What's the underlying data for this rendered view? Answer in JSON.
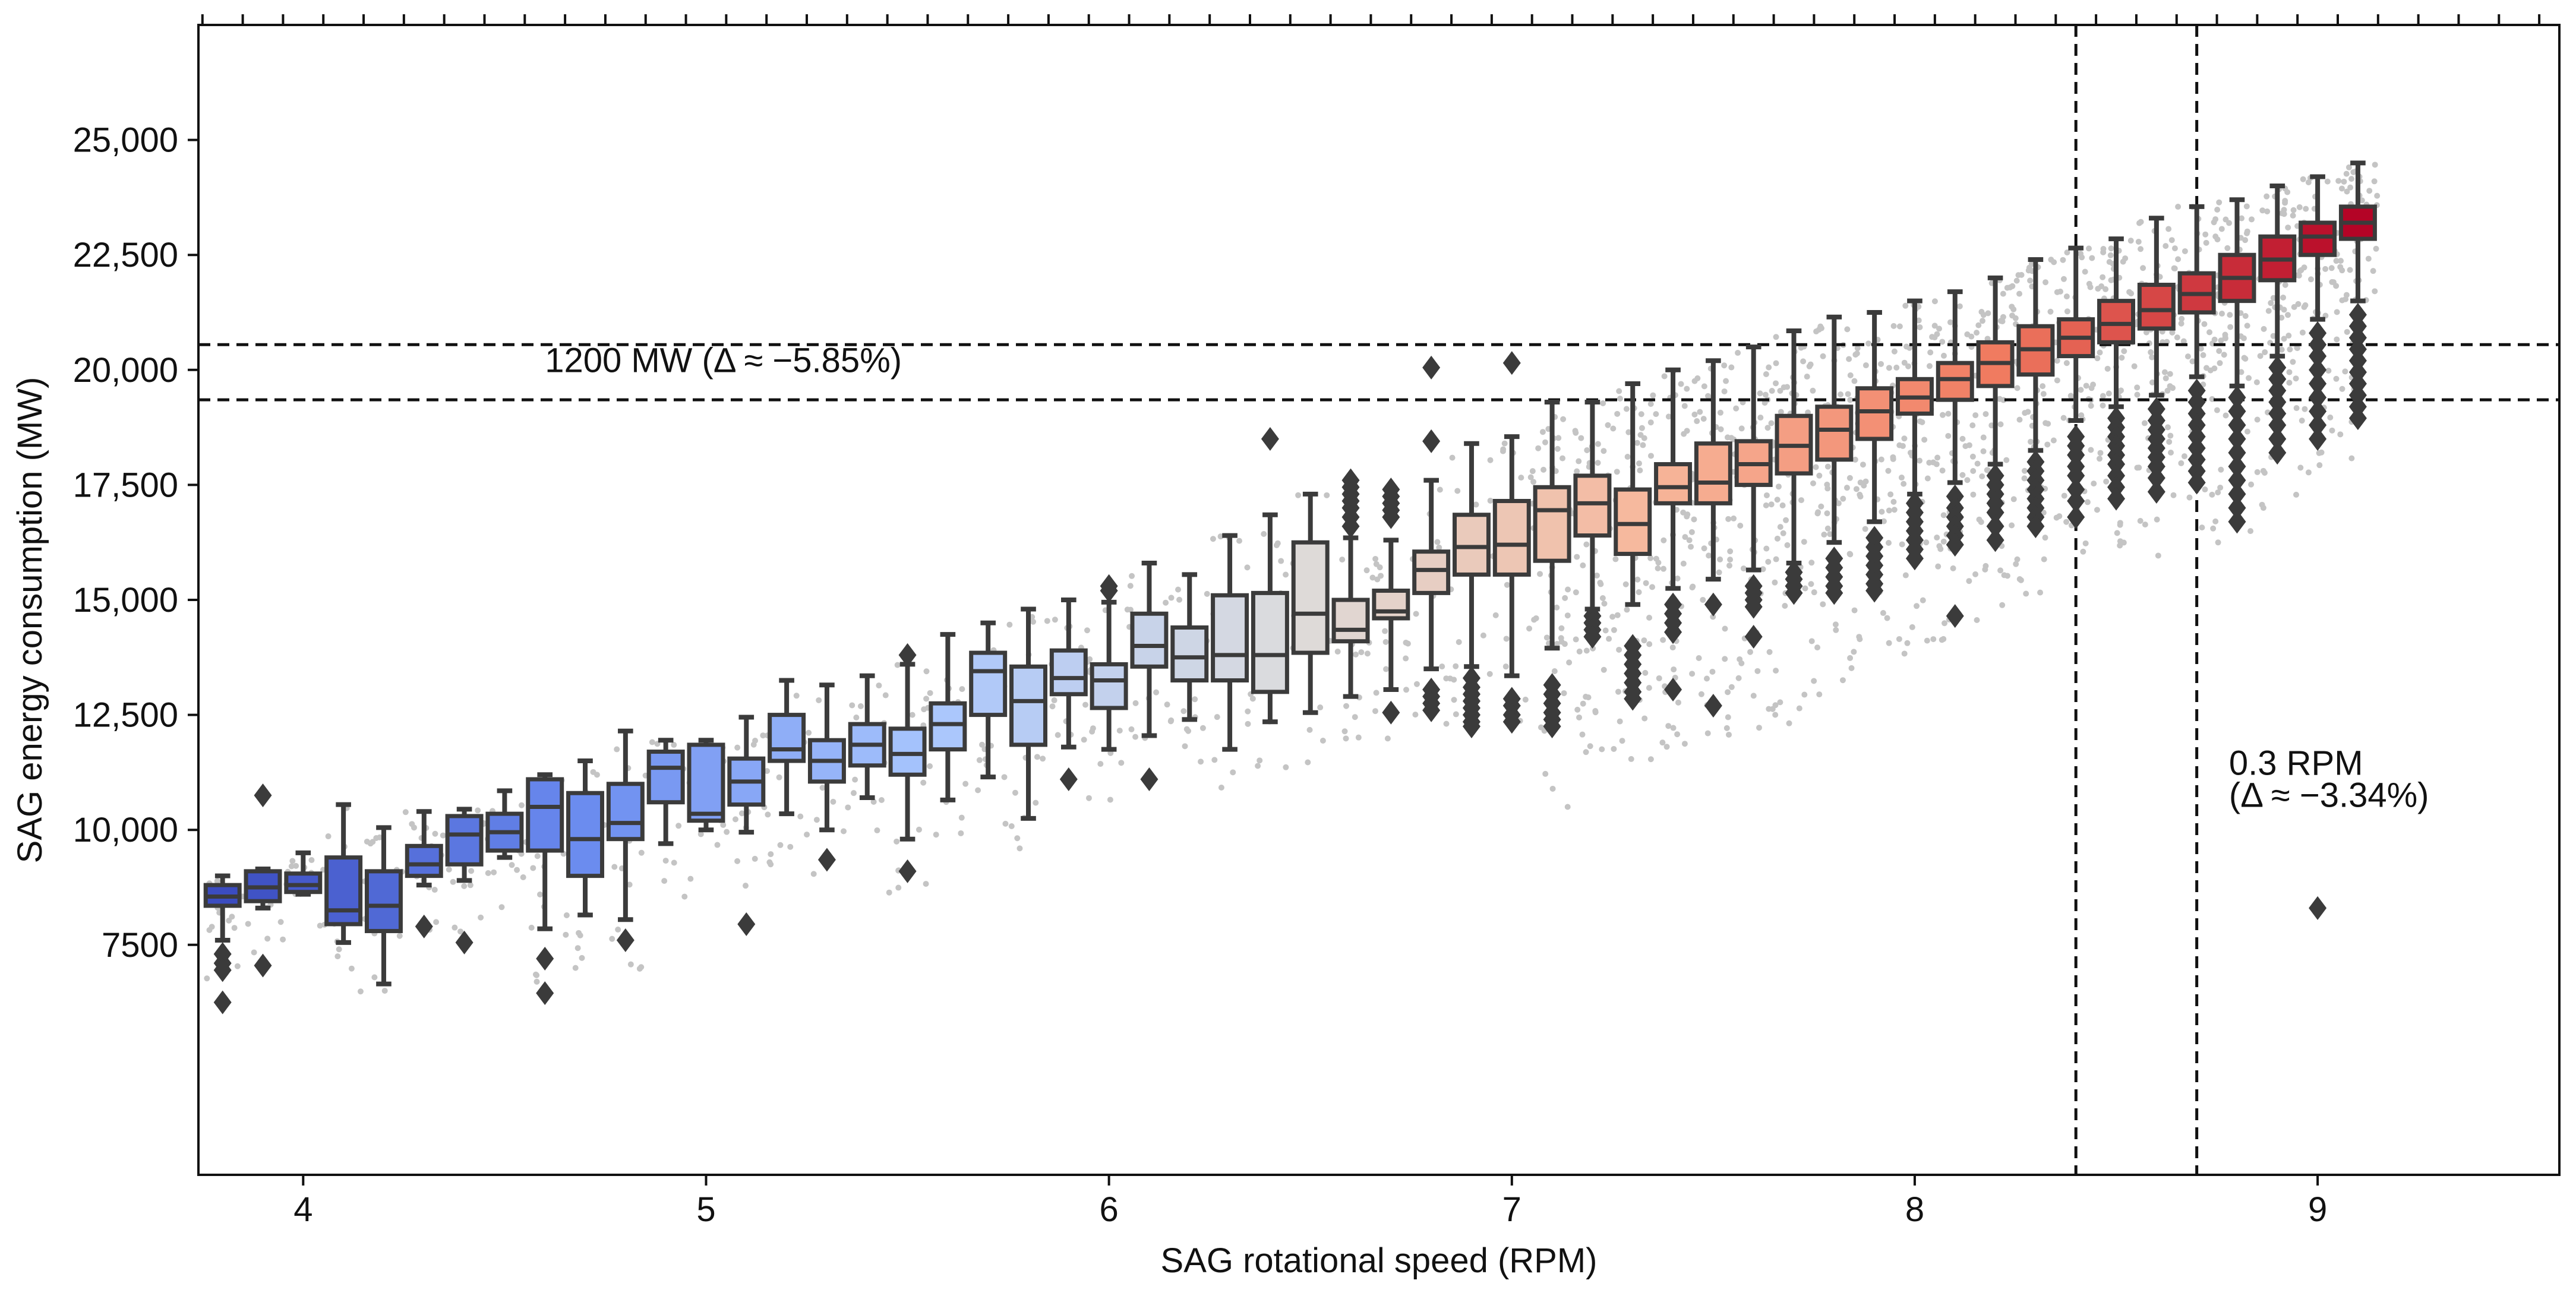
{
  "chart_data": {
    "type": "box",
    "xlabel": "SAG rotational speed (RPM)",
    "ylabel": "SAG energy consumption (MW)",
    "xlim": [
      3.74,
      9.6
    ],
    "ylim": [
      2500,
      27500
    ],
    "x_ticks": [
      {
        "value": 4,
        "label": "4"
      },
      {
        "value": 5,
        "label": "5"
      },
      {
        "value": 6,
        "label": "6"
      },
      {
        "value": 7,
        "label": "7"
      },
      {
        "value": 8,
        "label": "8"
      },
      {
        "value": 9,
        "label": "9"
      }
    ],
    "y_ticks": [
      {
        "value": 7500,
        "label": "7500"
      },
      {
        "value": 10000,
        "label": "10,000"
      },
      {
        "value": 12500,
        "label": "12,500"
      },
      {
        "value": 15000,
        "label": "15,000"
      },
      {
        "value": 17500,
        "label": "17,500"
      },
      {
        "value": 20000,
        "label": "20,000"
      },
      {
        "value": 22500,
        "label": "22,500"
      },
      {
        "value": 25000,
        "label": "25,000"
      }
    ],
    "bin_width_rpm": 0.1,
    "boxes": [
      {
        "x": 3.8,
        "q1": 8350,
        "median": 8550,
        "q3": 8800,
        "wlo": 7600,
        "whi": 9000,
        "fliers": [
          7300,
          7100,
          6950,
          6250
        ]
      },
      {
        "x": 3.9,
        "q1": 8450,
        "median": 8750,
        "q3": 9100,
        "wlo": 8300,
        "whi": 9150,
        "fliers": [
          10750,
          7050
        ]
      },
      {
        "x": 4.0,
        "q1": 8650,
        "median": 8800,
        "q3": 9050,
        "wlo": 8600,
        "whi": 9500,
        "fliers": []
      },
      {
        "x": 4.1,
        "q1": 7950,
        "median": 8250,
        "q3": 9400,
        "wlo": 7550,
        "whi": 10550,
        "fliers": []
      },
      {
        "x": 4.2,
        "q1": 7800,
        "median": 8350,
        "q3": 9100,
        "wlo": 6650,
        "whi": 10050,
        "fliers": []
      },
      {
        "x": 4.3,
        "q1": 9000,
        "median": 9250,
        "q3": 9650,
        "wlo": 8800,
        "whi": 10400,
        "fliers": [
          7900
        ]
      },
      {
        "x": 4.4,
        "q1": 9250,
        "median": 9900,
        "q3": 10300,
        "wlo": 8900,
        "whi": 10450,
        "fliers": [
          7550
        ]
      },
      {
        "x": 4.5,
        "q1": 9550,
        "median": 9950,
        "q3": 10350,
        "wlo": 9400,
        "whi": 10850,
        "fliers": []
      },
      {
        "x": 4.6,
        "q1": 9550,
        "median": 10500,
        "q3": 11100,
        "wlo": 7850,
        "whi": 11200,
        "fliers": [
          7200,
          6450
        ]
      },
      {
        "x": 4.7,
        "q1": 9000,
        "median": 9800,
        "q3": 10800,
        "wlo": 8150,
        "whi": 11500,
        "fliers": []
      },
      {
        "x": 4.8,
        "q1": 9800,
        "median": 10150,
        "q3": 11000,
        "wlo": 8050,
        "whi": 12150,
        "fliers": [
          7600
        ]
      },
      {
        "x": 4.9,
        "q1": 10600,
        "median": 11350,
        "q3": 11700,
        "wlo": 9700,
        "whi": 11950,
        "fliers": []
      },
      {
        "x": 5.0,
        "q1": 10200,
        "median": 10350,
        "q3": 11850,
        "wlo": 10000,
        "whi": 11950,
        "fliers": []
      },
      {
        "x": 5.1,
        "q1": 10550,
        "median": 11050,
        "q3": 11550,
        "wlo": 9950,
        "whi": 12450,
        "fliers": [
          7950
        ]
      },
      {
        "x": 5.2,
        "q1": 11500,
        "median": 11750,
        "q3": 12500,
        "wlo": 10350,
        "whi": 13250,
        "fliers": []
      },
      {
        "x": 5.3,
        "q1": 11050,
        "median": 11500,
        "q3": 11950,
        "wlo": 10000,
        "whi": 13150,
        "fliers": [
          9350
        ]
      },
      {
        "x": 5.4,
        "q1": 11400,
        "median": 11850,
        "q3": 12300,
        "wlo": 10700,
        "whi": 13350,
        "fliers": []
      },
      {
        "x": 5.5,
        "q1": 11200,
        "median": 11650,
        "q3": 12200,
        "wlo": 9800,
        "whi": 13600,
        "fliers": [
          13800,
          9100
        ]
      },
      {
        "x": 5.6,
        "q1": 11750,
        "median": 12300,
        "q3": 12750,
        "wlo": 10650,
        "whi": 14250,
        "fliers": []
      },
      {
        "x": 5.7,
        "q1": 12500,
        "median": 13450,
        "q3": 13850,
        "wlo": 11150,
        "whi": 14500,
        "fliers": []
      },
      {
        "x": 5.8,
        "q1": 11850,
        "median": 12800,
        "q3": 13550,
        "wlo": 10250,
        "whi": 14800,
        "fliers": []
      },
      {
        "x": 5.9,
        "q1": 12950,
        "median": 13300,
        "q3": 13900,
        "wlo": 11800,
        "whi": 15000,
        "fliers": [
          11100
        ]
      },
      {
        "x": 6.0,
        "q1": 12650,
        "median": 13250,
        "q3": 13600,
        "wlo": 11750,
        "whi": 14950,
        "fliers": [
          15300,
          15200
        ]
      },
      {
        "x": 6.1,
        "q1": 13550,
        "median": 14000,
        "q3": 14700,
        "wlo": 12050,
        "whi": 15800,
        "fliers": [
          11100
        ]
      },
      {
        "x": 6.2,
        "q1": 13250,
        "median": 13750,
        "q3": 14400,
        "wlo": 12400,
        "whi": 15550,
        "fliers": []
      },
      {
        "x": 6.3,
        "q1": 13250,
        "median": 13800,
        "q3": 15100,
        "wlo": 11750,
        "whi": 16400,
        "fliers": []
      },
      {
        "x": 6.4,
        "q1": 13000,
        "median": 13800,
        "q3": 15150,
        "wlo": 12350,
        "whi": 16850,
        "fliers": [
          18500
        ]
      },
      {
        "x": 6.5,
        "q1": 13850,
        "median": 14700,
        "q3": 16250,
        "wlo": 12550,
        "whi": 17300,
        "fliers": []
      },
      {
        "x": 6.6,
        "q1": 14100,
        "median": 14350,
        "q3": 15000,
        "wlo": 12900,
        "whi": 16350,
        "fliers": [
          17600,
          17450,
          17300,
          17150,
          17000,
          16800,
          16600
        ]
      },
      {
        "x": 6.7,
        "q1": 14600,
        "median": 14750,
        "q3": 15200,
        "wlo": 13050,
        "whi": 16300,
        "fliers": [
          17400,
          17250,
          17100,
          16950,
          16800,
          12550
        ]
      },
      {
        "x": 6.8,
        "q1": 15150,
        "median": 15650,
        "q3": 16050,
        "wlo": 13500,
        "whi": 17600,
        "fliers": [
          20050,
          18450,
          13050,
          12900,
          12750,
          12600
        ]
      },
      {
        "x": 6.9,
        "q1": 15550,
        "median": 16150,
        "q3": 16850,
        "wlo": 13550,
        "whi": 18400,
        "fliers": [
          13300,
          13100,
          12950,
          12800,
          12650,
          12500,
          12350,
          12250
        ]
      },
      {
        "x": 7.0,
        "q1": 15550,
        "median": 16200,
        "q3": 17150,
        "wlo": 13350,
        "whi": 18550,
        "fliers": [
          20150,
          12850,
          12700,
          12500,
          12350
        ]
      },
      {
        "x": 7.1,
        "q1": 15850,
        "median": 16950,
        "q3": 17450,
        "wlo": 13950,
        "whi": 19300,
        "fliers": [
          13150,
          12950,
          12750,
          12550,
          12400,
          12250
        ]
      },
      {
        "x": 7.2,
        "q1": 16400,
        "median": 17100,
        "q3": 17700,
        "wlo": 14800,
        "whi": 19300,
        "fliers": [
          14650,
          14500,
          14350,
          14200
        ]
      },
      {
        "x": 7.3,
        "q1": 16000,
        "median": 16650,
        "q3": 17400,
        "wlo": 14900,
        "whi": 19700,
        "fliers": [
          14000,
          13800,
          13600,
          13400,
          13200,
          13000,
          12850
        ]
      },
      {
        "x": 7.4,
        "q1": 17100,
        "median": 17450,
        "q3": 17950,
        "wlo": 15250,
        "whi": 20000,
        "fliers": [
          14900,
          14700,
          14500,
          14300,
          13050
        ]
      },
      {
        "x": 7.5,
        "q1": 17100,
        "median": 17550,
        "q3": 18400,
        "wlo": 15450,
        "whi": 20200,
        "fliers": [
          14900,
          12700
        ]
      },
      {
        "x": 7.6,
        "q1": 17500,
        "median": 17950,
        "q3": 18450,
        "wlo": 15650,
        "whi": 20500,
        "fliers": [
          15300,
          15150,
          15000,
          14850,
          14200
        ]
      },
      {
        "x": 7.7,
        "q1": 17750,
        "median": 18350,
        "q3": 19000,
        "wlo": 15800,
        "whi": 20850,
        "fliers": [
          15600,
          15450,
          15300,
          15150
        ]
      },
      {
        "x": 7.8,
        "q1": 18050,
        "median": 18700,
        "q3": 19200,
        "wlo": 16250,
        "whi": 21150,
        "fliers": [
          15900,
          15700,
          15500,
          15300,
          15150
        ]
      },
      {
        "x": 7.9,
        "q1": 18500,
        "median": 19100,
        "q3": 19600,
        "wlo": 16700,
        "whi": 21250,
        "fliers": [
          16350,
          16150,
          15950,
          15750,
          15550,
          15350,
          15200
        ]
      },
      {
        "x": 8.0,
        "q1": 19050,
        "median": 19400,
        "q3": 19800,
        "wlo": 17300,
        "whi": 21500,
        "fliers": [
          17100,
          16900,
          16700,
          16500,
          16300,
          16100,
          15900
        ]
      },
      {
        "x": 8.1,
        "q1": 19350,
        "median": 19800,
        "q3": 20150,
        "wlo": 17550,
        "whi": 21700,
        "fliers": [
          17250,
          17000,
          16800,
          16600,
          16400,
          16200,
          14650
        ]
      },
      {
        "x": 8.2,
        "q1": 19650,
        "median": 20150,
        "q3": 20600,
        "wlo": 17950,
        "whi": 22000,
        "fliers": [
          17700,
          17500,
          17300,
          17100,
          16900,
          16600,
          16300
        ]
      },
      {
        "x": 8.3,
        "q1": 19900,
        "median": 20450,
        "q3": 20950,
        "wlo": 18250,
        "whi": 22400,
        "fliers": [
          18000,
          17800,
          17600,
          17400,
          17200,
          17000,
          16800,
          16600
        ]
      },
      {
        "x": 8.4,
        "q1": 20300,
        "median": 20700,
        "q3": 21100,
        "wlo": 18900,
        "whi": 22650,
        "fliers": [
          18550,
          18350,
          18150,
          17900,
          17700,
          17400,
          17150,
          16800
        ]
      },
      {
        "x": 8.5,
        "q1": 20600,
        "median": 21000,
        "q3": 21500,
        "wlo": 19200,
        "whi": 22850,
        "fliers": [
          18950,
          18750,
          18550,
          18350,
          18150,
          17950,
          17700,
          17450,
          17200
        ]
      },
      {
        "x": 8.6,
        "q1": 20900,
        "median": 21300,
        "q3": 21850,
        "wlo": 19450,
        "whi": 23300,
        "fliers": [
          19150,
          18900,
          18700,
          18500,
          18300,
          18100,
          17900,
          17650,
          17350
        ]
      },
      {
        "x": 8.7,
        "q1": 21250,
        "median": 21650,
        "q3": 22100,
        "wlo": 19850,
        "whi": 23550,
        "fliers": [
          19550,
          19300,
          19050,
          18800,
          18550,
          18300,
          18050,
          17800,
          17550
        ]
      },
      {
        "x": 8.8,
        "q1": 21500,
        "median": 22000,
        "q3": 22500,
        "wlo": 19650,
        "whi": 23700,
        "fliers": [
          19400,
          19100,
          18800,
          18500,
          18200,
          17900,
          17600,
          17300,
          17000,
          16700
        ]
      },
      {
        "x": 8.9,
        "q1": 21950,
        "median": 22400,
        "q3": 22900,
        "wlo": 20300,
        "whi": 24000,
        "fliers": [
          20050,
          19800,
          19550,
          19300,
          19050,
          18800,
          18500,
          18200
        ]
      },
      {
        "x": 9.0,
        "q1": 22500,
        "median": 22900,
        "q3": 23200,
        "wlo": 21100,
        "whi": 24200,
        "fliers": [
          20800,
          20550,
          20300,
          20000,
          19700,
          19400,
          19100,
          18800,
          18500,
          8300
        ]
      },
      {
        "x": 9.1,
        "q1": 22850,
        "median": 23200,
        "q3": 23550,
        "wlo": 21500,
        "whi": 24500,
        "fliers": [
          21200,
          20950,
          20700,
          20450,
          20200,
          19950,
          19700,
          19450,
          19200,
          18950
        ]
      }
    ],
    "reference_lines": [
      {
        "orientation": "horizontal",
        "value": 20550
      },
      {
        "orientation": "horizontal",
        "value": 19350
      },
      {
        "orientation": "vertical",
        "value": 8.4
      },
      {
        "orientation": "vertical",
        "value": 8.7
      }
    ],
    "annotations": [
      {
        "text": "1200 MW (Δ ≈ −5.85%)",
        "x": 4.6,
        "y": 19950
      },
      {
        "text": "0.3 RPM",
        "x": 8.78,
        "y": 11200
      },
      {
        "text": "(Δ ≈ −3.34%)",
        "x": 8.78,
        "y": 10500
      }
    ],
    "colors": {
      "axis": "#111111",
      "box_edge": "#3b3b3b",
      "scatter": "#c4c4c4",
      "flier": "#3b3b3b",
      "colormap": [
        "#3b4cc0",
        "#6a8bef",
        "#a9c6fd",
        "#dddcdc",
        "#f7b89c",
        "#f07a5f",
        "#b40426"
      ]
    }
  }
}
